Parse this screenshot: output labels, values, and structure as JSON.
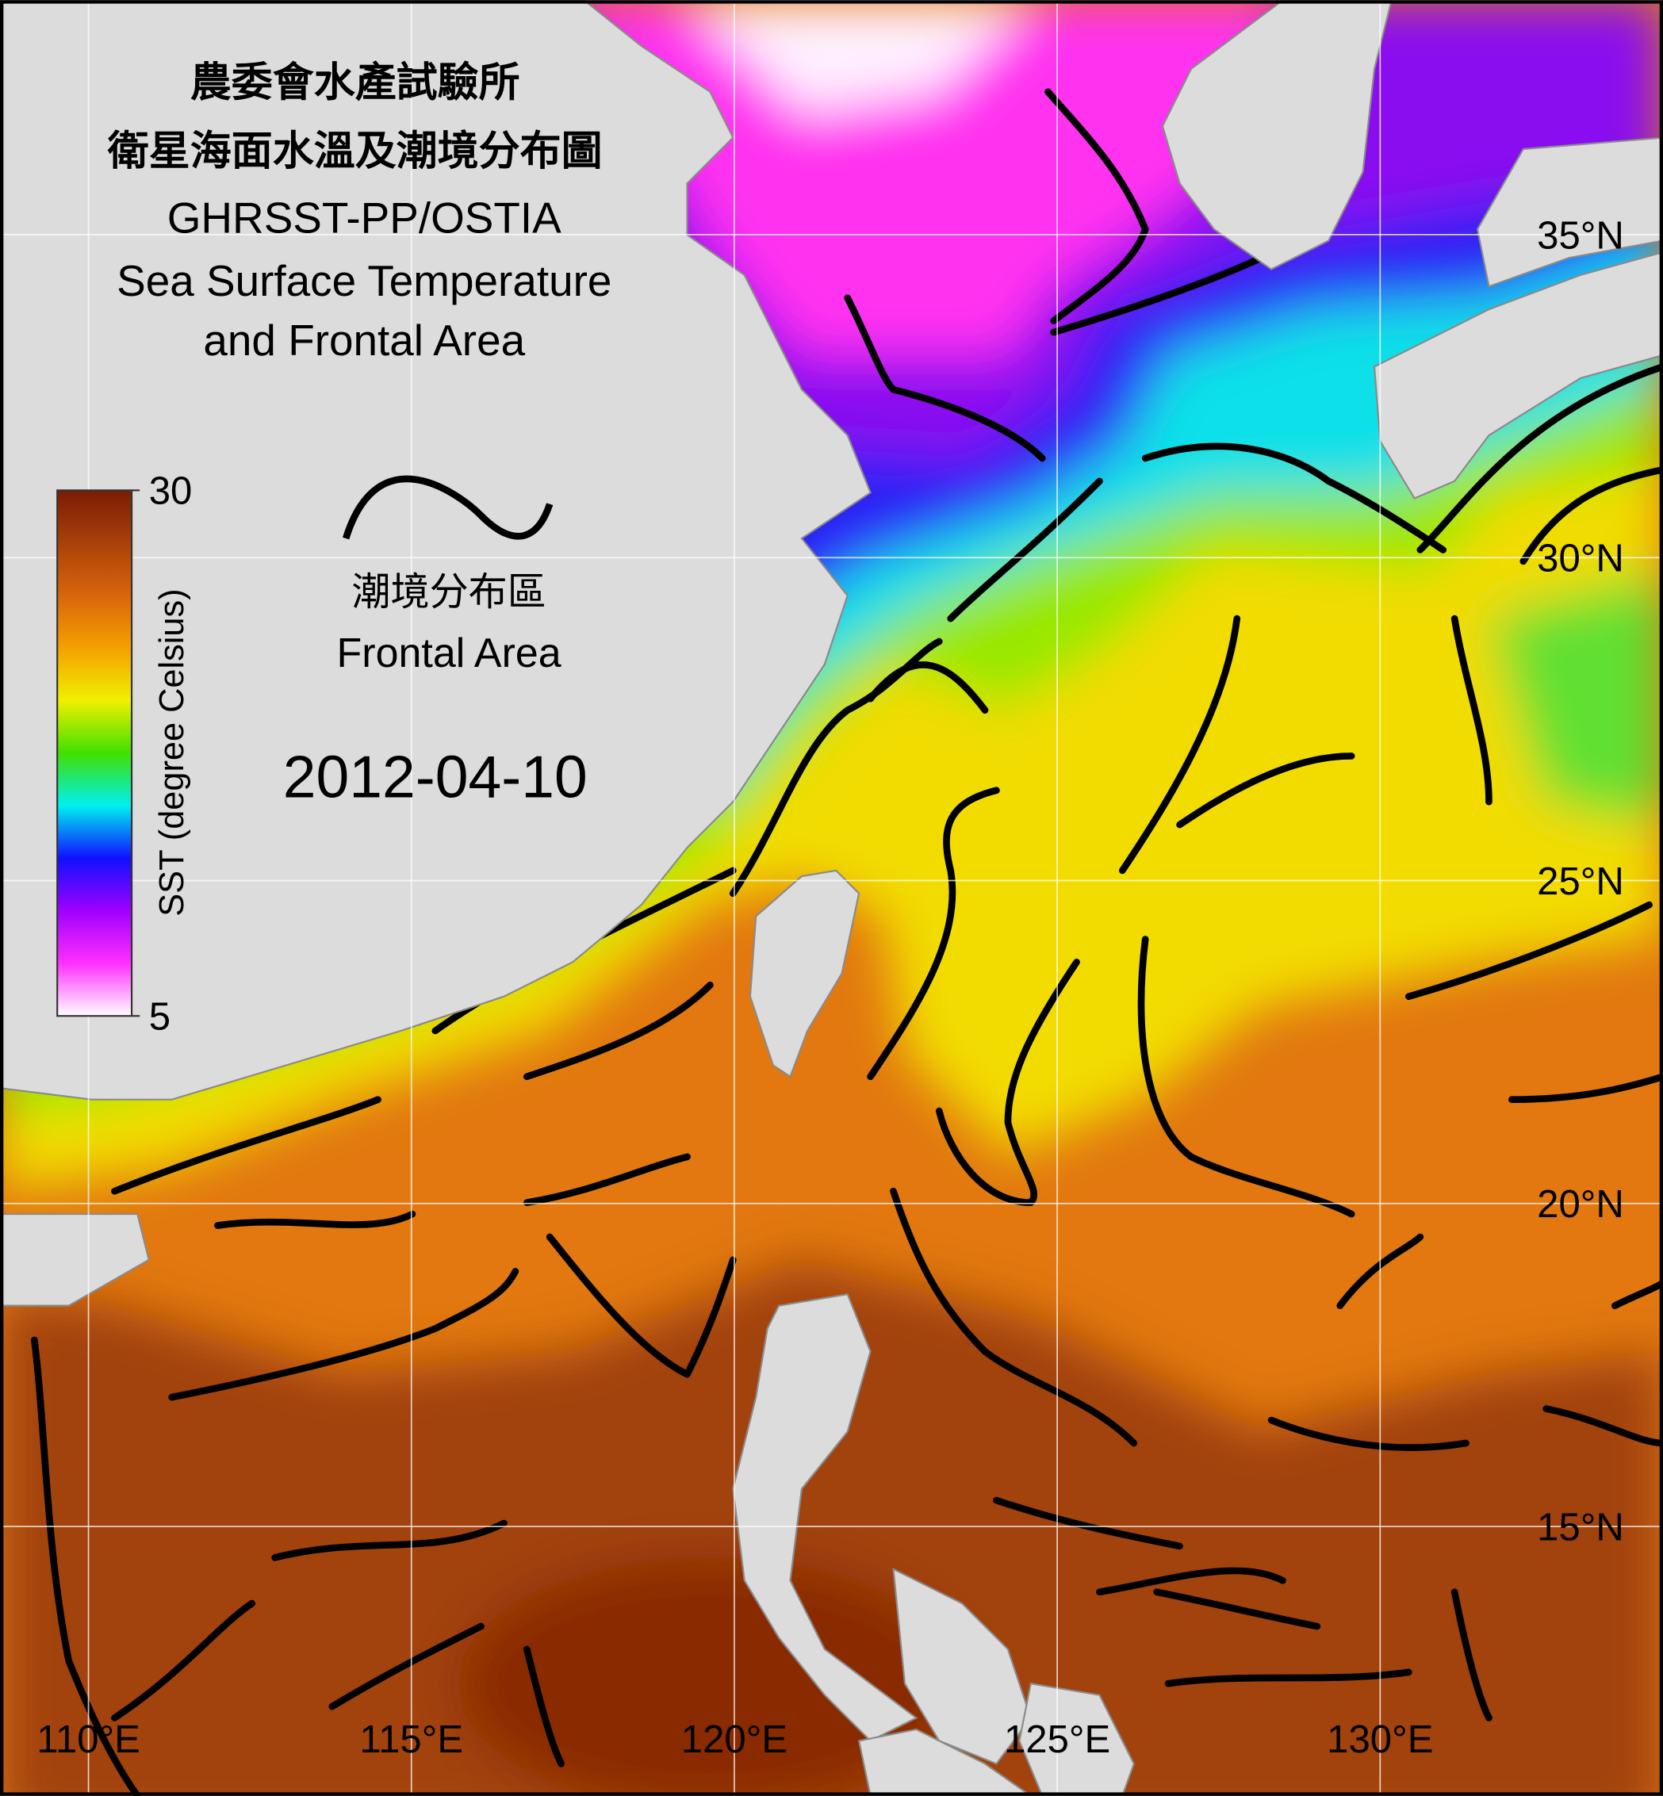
{
  "header": {
    "title_zh": "農委會水產試驗所",
    "subtitle_zh": "衛星海面水溫及潮境分布圖",
    "source": "GHRSST-PP/OSTIA",
    "title_en_1": "Sea Surface Temperature",
    "title_en_2": "and Frontal Area"
  },
  "legend": {
    "label_zh": "潮境分布區",
    "label_en": "Frontal Area"
  },
  "date": "2012-04-10",
  "colorbar": {
    "label": "SST (degree Celsius)",
    "range": [
      5,
      30
    ],
    "ticks": [
      5,
      30
    ]
  },
  "map": {
    "xlim": [
      108.63,
      134.38
    ],
    "ylim": [
      10.83,
      38.63
    ],
    "grid": true,
    "xticks": [
      {
        "value": 110,
        "label": "110°E"
      },
      {
        "value": 115,
        "label": "115°E"
      },
      {
        "value": 120,
        "label": "120°E"
      },
      {
        "value": 125,
        "label": "125°E"
      },
      {
        "value": 130,
        "label": "130°E"
      }
    ],
    "yticks": [
      {
        "value": 15,
        "label": "15°N"
      },
      {
        "value": 20,
        "label": "20°N"
      },
      {
        "value": 25,
        "label": "25°N"
      },
      {
        "value": 30,
        "label": "30°N"
      },
      {
        "value": 35,
        "label": "35°N"
      }
    ]
  }
}
